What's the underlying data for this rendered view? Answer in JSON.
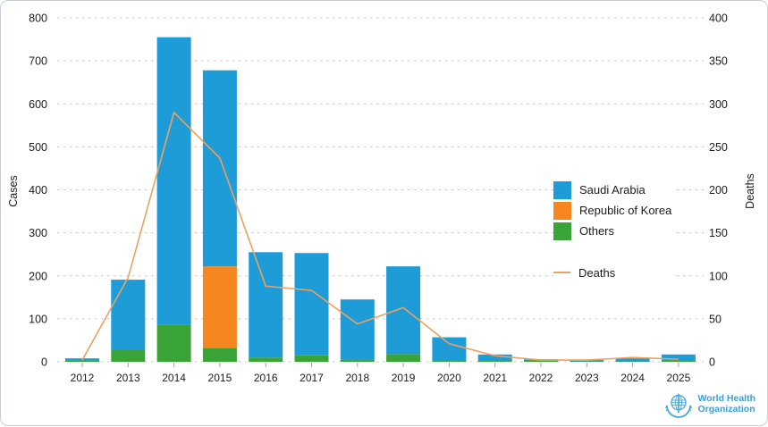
{
  "figure": {
    "kind": "stacked-bar-with-line-chart",
    "background": "#ffffff",
    "border_color": "#c9ced4"
  },
  "attribution": {
    "line1": "World Health",
    "line2": "Organization",
    "logo_color": "#4aa9dc"
  },
  "chart_data": {
    "type": "bar",
    "subtype": "stacked-columns-with-secondary-axis-line",
    "categories": [
      "2012",
      "2013",
      "2014",
      "2015",
      "2016",
      "2017",
      "2018",
      "2019",
      "2020",
      "2021",
      "2022",
      "2023",
      "2024",
      "2025"
    ],
    "series": [
      {
        "name": "Saudi Arabia",
        "color": "#1e9cd8",
        "values": [
          4,
          163,
          669,
          456,
          245,
          238,
          140,
          204,
          55,
          15,
          2,
          3,
          7,
          15
        ]
      },
      {
        "name": "Republic of Korea",
        "color": "#f6861f",
        "values": [
          0,
          0,
          0,
          190,
          0,
          0,
          0,
          0,
          0,
          0,
          0,
          0,
          0,
          0
        ]
      },
      {
        "name": "Others",
        "color": "#3ba438",
        "values": [
          4,
          28,
          86,
          32,
          10,
          15,
          5,
          18,
          2,
          2,
          4,
          1,
          1,
          2
        ]
      }
    ],
    "bar_totals": [
      8,
      191,
      755,
      678,
      255,
      253,
      145,
      222,
      57,
      17,
      6,
      4,
      8,
      17
    ],
    "line_series": {
      "name": "Deaths",
      "color": "#eda15f",
      "axis": "right",
      "values": [
        2,
        98,
        290,
        237,
        88,
        83,
        44,
        63,
        21,
        7,
        2,
        2,
        5,
        3
      ]
    },
    "left_axis": {
      "title": "Cases",
      "min": 0,
      "max": 800,
      "step": 100,
      "ticks": [
        "0",
        "100",
        "200",
        "300",
        "400",
        "500",
        "600",
        "700",
        "800"
      ]
    },
    "right_axis": {
      "title": "Deaths",
      "min": 0,
      "max": 400,
      "step": 50,
      "ticks": [
        "0",
        "50",
        "100",
        "150",
        "200",
        "250",
        "300",
        "350",
        "400"
      ]
    },
    "grid": {
      "style": "horizontal-dashed",
      "color": "#c8c8c8"
    },
    "legend_position": "center-right",
    "legend_order": [
      "Saudi Arabia",
      "Republic of Korea",
      "Others",
      "Deaths"
    ]
  }
}
